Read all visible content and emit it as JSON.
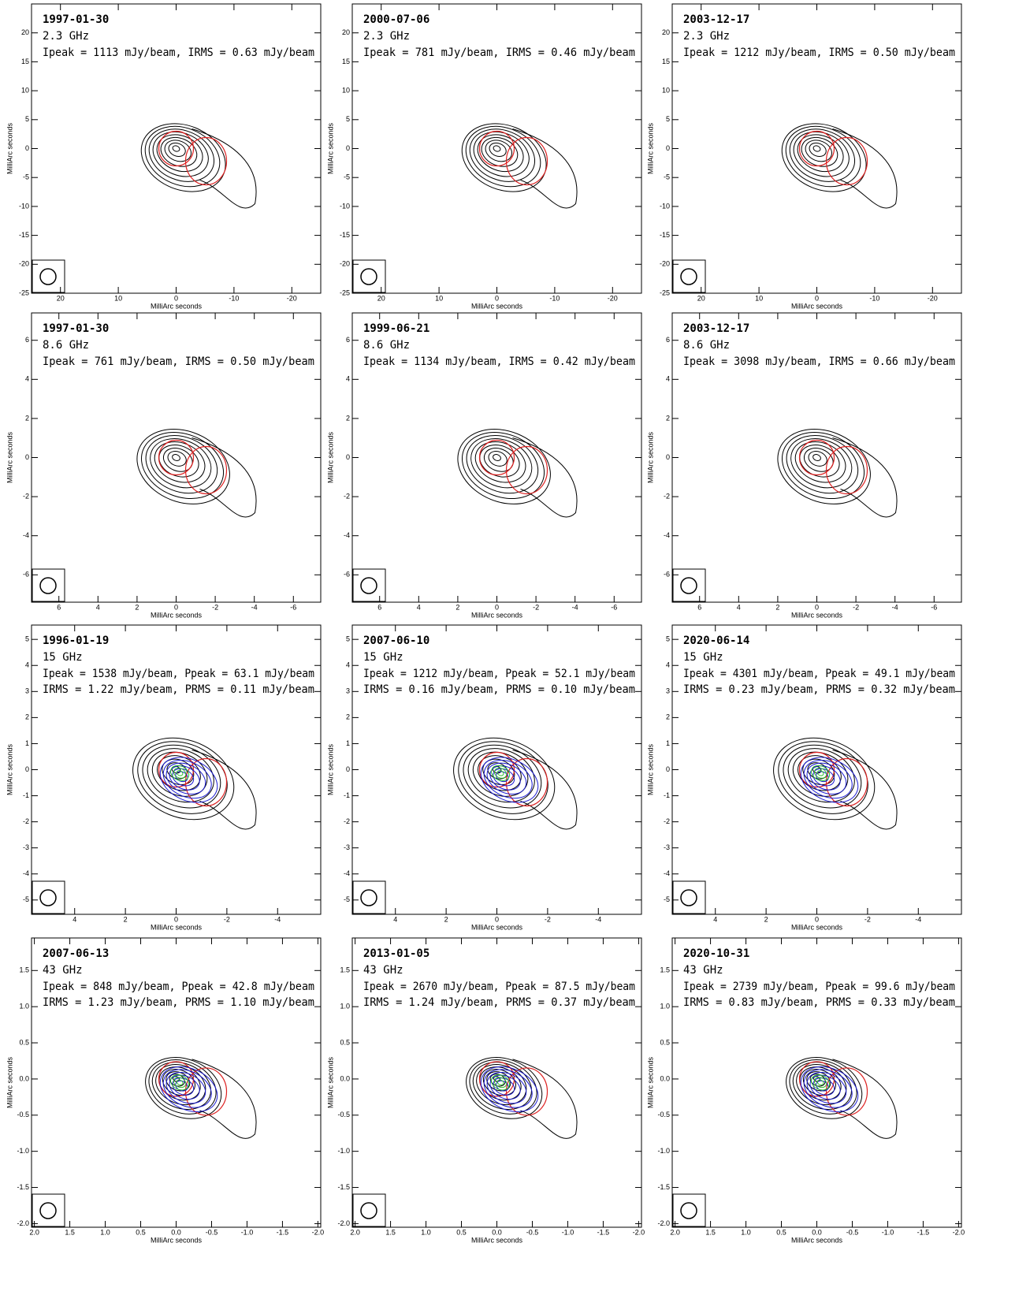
{
  "chart_data": [
    {
      "type": "contour",
      "title": "1997-01-30",
      "subtitle": "2.3 GHz",
      "annotations": [
        "Ipeak = 1113 mJy/beam, IRMS = 0.63 mJy/beam"
      ],
      "xlabel": "MilliArc seconds",
      "ylabel": "MilliArc seconds",
      "xlim": [
        25,
        -25
      ],
      "ylim": [
        -25,
        25
      ],
      "xticks": [
        20,
        10,
        0,
        -10,
        -20
      ],
      "yticks": [
        -25,
        -20,
        -15,
        -10,
        -5,
        0,
        5,
        10,
        15,
        20
      ]
    },
    {
      "type": "contour",
      "title": "2000-07-06",
      "subtitle": "2.3 GHz",
      "annotations": [
        "Ipeak = 781 mJy/beam, IRMS = 0.46 mJy/beam"
      ],
      "xlabel": "MilliArc seconds",
      "ylabel": "MilliArc seconds",
      "xlim": [
        25,
        -25
      ],
      "ylim": [
        -25,
        25
      ],
      "xticks": [
        20,
        10,
        0,
        -10,
        -20
      ],
      "yticks": [
        -25,
        -20,
        -15,
        -10,
        -5,
        0,
        5,
        10,
        15,
        20
      ]
    },
    {
      "type": "contour",
      "title": "2003-12-17",
      "subtitle": "2.3 GHz",
      "annotations": [
        "Ipeak = 1212 mJy/beam, IRMS = 0.50 mJy/beam"
      ],
      "xlabel": "MilliArc seconds",
      "ylabel": "MilliArc seconds",
      "xlim": [
        25,
        -25
      ],
      "ylim": [
        -25,
        25
      ],
      "xticks": [
        20,
        10,
        0,
        -10,
        -20
      ],
      "yticks": [
        -25,
        -20,
        -15,
        -10,
        -5,
        0,
        5,
        10,
        15,
        20
      ]
    },
    {
      "type": "contour",
      "title": "1997-01-30",
      "subtitle": "8.6 GHz",
      "annotations": [
        "Ipeak = 761 mJy/beam, IRMS = 0.50 mJy/beam"
      ],
      "xlabel": "MilliArc seconds",
      "ylabel": "MilliArc seconds",
      "xlim": [
        7.4,
        -7.4
      ],
      "ylim": [
        -7.4,
        7.4
      ],
      "xticks": [
        6,
        4,
        2,
        0,
        -2,
        -4,
        -6
      ],
      "yticks": [
        -6,
        -4,
        -2,
        0,
        2,
        4,
        6
      ]
    },
    {
      "type": "contour",
      "title": "1999-06-21",
      "subtitle": "8.6 GHz",
      "annotations": [
        "Ipeak = 1134 mJy/beam, IRMS = 0.42 mJy/beam"
      ],
      "xlabel": "MilliArc seconds",
      "ylabel": "MilliArc seconds",
      "xlim": [
        7.4,
        -7.4
      ],
      "ylim": [
        -7.4,
        7.4
      ],
      "xticks": [
        6,
        4,
        2,
        0,
        -2,
        -4,
        -6
      ],
      "yticks": [
        -6,
        -4,
        -2,
        0,
        2,
        4,
        6
      ]
    },
    {
      "type": "contour",
      "title": "2003-12-17",
      "subtitle": "8.6 GHz",
      "annotations": [
        "Ipeak = 3098 mJy/beam, IRMS = 0.66 mJy/beam"
      ],
      "xlabel": "MilliArc seconds",
      "ylabel": "MilliArc seconds",
      "xlim": [
        7.4,
        -7.4
      ],
      "ylim": [
        -7.4,
        7.4
      ],
      "xticks": [
        6,
        4,
        2,
        0,
        -2,
        -4,
        -6
      ],
      "yticks": [
        -6,
        -4,
        -2,
        0,
        2,
        4,
        6
      ]
    },
    {
      "type": "contour",
      "title": "1996-01-19",
      "subtitle": "15 GHz",
      "annotations": [
        "Ipeak = 1538 mJy/beam, Ppeak = 63.1 mJy/beam",
        "IRMS = 1.22 mJy/beam, PRMS = 0.11 mJy/beam"
      ],
      "xlabel": "MilliArc seconds",
      "ylabel": "MilliArc seconds",
      "xlim": [
        5.7,
        -5.7
      ],
      "ylim": [
        -5.55,
        5.55
      ],
      "xticks": [
        4,
        2,
        0,
        -2,
        -4
      ],
      "yticks": [
        -5,
        -4,
        -3,
        -2,
        -1,
        0,
        1,
        2,
        3,
        4,
        5
      ]
    },
    {
      "type": "contour",
      "title": "2007-06-10",
      "subtitle": "15 GHz",
      "annotations": [
        "Ipeak = 1212 mJy/beam, Ppeak = 52.1 mJy/beam",
        "IRMS = 0.16 mJy/beam, PRMS = 0.10 mJy/beam"
      ],
      "xlabel": "MilliArc seconds",
      "ylabel": "MilliArc seconds",
      "xlim": [
        5.7,
        -5.7
      ],
      "ylim": [
        -5.55,
        5.55
      ],
      "xticks": [
        4,
        2,
        0,
        -2,
        -4
      ],
      "yticks": [
        -5,
        -4,
        -3,
        -2,
        -1,
        0,
        1,
        2,
        3,
        4,
        5
      ]
    },
    {
      "type": "contour",
      "title": "2020-06-14",
      "subtitle": "15 GHz",
      "annotations": [
        "Ipeak = 4301 mJy/beam, Ppeak = 49.1 mJy/beam",
        "IRMS = 0.23 mJy/beam, PRMS = 0.32 mJy/beam"
      ],
      "xlabel": "MilliArc seconds",
      "ylabel": "MilliArc seconds",
      "xlim": [
        5.7,
        -5.7
      ],
      "ylim": [
        -5.55,
        5.55
      ],
      "xticks": [
        4,
        2,
        0,
        -2,
        -4
      ],
      "yticks": [
        -5,
        -4,
        -3,
        -2,
        -1,
        0,
        1,
        2,
        3,
        4,
        5
      ]
    },
    {
      "type": "contour",
      "title": "2007-06-13",
      "subtitle": "43 GHz",
      "annotations": [
        "Ipeak = 848 mJy/beam, Ppeak = 42.8 mJy/beam",
        "IRMS = 1.23 mJy/beam, PRMS = 1.10 mJy/beam"
      ],
      "xlabel": "MilliArc seconds",
      "ylabel": "MilliArc seconds",
      "xlim": [
        2.04,
        -2.04
      ],
      "ylim": [
        -2.05,
        1.95
      ],
      "xticks": [
        {
          "value": 2,
          "label": "2.0"
        },
        1.5,
        {
          "value": 1,
          "label": "1.0"
        },
        0.5,
        {
          "value": 0,
          "label": "0.0"
        },
        -0.5,
        {
          "value": -1,
          "label": "-1.0"
        },
        -1.5,
        {
          "value": -2,
          "label": "-2.0"
        }
      ],
      "yticks": [
        {
          "value": -2,
          "label": "-2.0"
        },
        -1.5,
        {
          "value": -1,
          "label": "-1.0"
        },
        -0.5,
        {
          "value": 0,
          "label": "0.0"
        },
        0.5,
        {
          "value": 1,
          "label": "1.0"
        },
        1.5
      ]
    },
    {
      "type": "contour",
      "title": "2013-01-05",
      "subtitle": "43 GHz",
      "annotations": [
        "Ipeak = 2670 mJy/beam, Ppeak = 87.5 mJy/beam",
        "IRMS = 1.24 mJy/beam, PRMS = 0.37 mJy/beam"
      ],
      "xlabel": "MilliArc seconds",
      "ylabel": "MilliArc seconds",
      "xlim": [
        2.04,
        -2.04
      ],
      "ylim": [
        -2.05,
        1.95
      ],
      "xticks": [
        {
          "value": 2,
          "label": "2.0"
        },
        1.5,
        {
          "value": 1,
          "label": "1.0"
        },
        0.5,
        {
          "value": 0,
          "label": "0.0"
        },
        -0.5,
        {
          "value": -1,
          "label": "-1.0"
        },
        -1.5,
        {
          "value": -2,
          "label": "-2.0"
        }
      ],
      "yticks": [
        {
          "value": -2,
          "label": "-2.0"
        },
        -1.5,
        {
          "value": -1,
          "label": "-1.0"
        },
        -0.5,
        {
          "value": 0,
          "label": "0.0"
        },
        0.5,
        {
          "value": 1,
          "label": "1.0"
        },
        1.5
      ]
    },
    {
      "type": "contour",
      "title": "2020-10-31",
      "subtitle": "43 GHz",
      "annotations": [
        "Ipeak = 2739 mJy/beam, Ppeak = 99.6 mJy/beam",
        "IRMS = 0.83 mJy/beam, PRMS = 0.33 mJy/beam"
      ],
      "xlabel": "MilliArc seconds",
      "ylabel": "MilliArc seconds",
      "xlim": [
        2.04,
        -2.04
      ],
      "ylim": [
        -2.05,
        1.95
      ],
      "xticks": [
        {
          "value": 2,
          "label": "2.0"
        },
        1.5,
        {
          "value": 1,
          "label": "1.0"
        },
        0.5,
        {
          "value": 0,
          "label": "0.0"
        },
        -0.5,
        {
          "value": -1,
          "label": "-1.0"
        },
        -1.5,
        {
          "value": -2,
          "label": "-2.0"
        }
      ],
      "yticks": [
        {
          "value": -2,
          "label": "-2.0"
        },
        -1.5,
        {
          "value": -1,
          "label": "-1.0"
        },
        -0.5,
        {
          "value": 0,
          "label": "0.0"
        },
        0.5,
        {
          "value": 1,
          "label": "1.0"
        },
        1.5
      ]
    }
  ]
}
